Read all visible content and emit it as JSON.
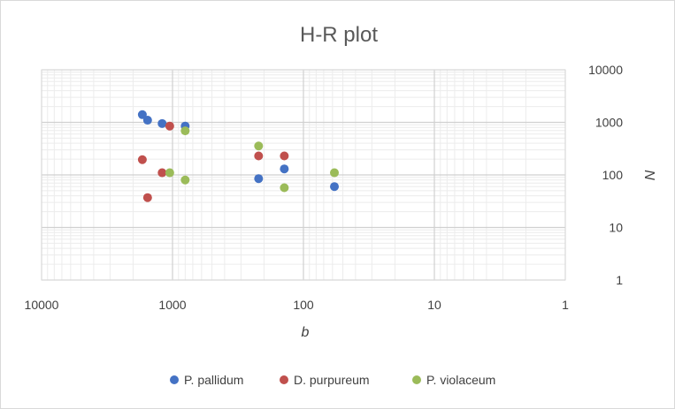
{
  "chart_data": {
    "type": "scatter",
    "title": "H-R plot",
    "xlabel": "b",
    "ylabel": "N",
    "x_scale": "log",
    "y_scale": "log",
    "x_reversed": true,
    "xlim": [
      10000,
      1
    ],
    "ylim": [
      1,
      10000
    ],
    "x_ticks": [
      10000,
      1000,
      100,
      10,
      1
    ],
    "x_tick_labels": [
      "10000",
      "1000",
      "100",
      "10",
      "1"
    ],
    "y_ticks": [
      1,
      10,
      100,
      1000,
      10000
    ],
    "y_tick_labels": [
      "1",
      "10",
      "100",
      "1000",
      "10000"
    ],
    "y_axis_side": "right",
    "grid": true,
    "minor_grid": true,
    "legend_position": "bottom",
    "series": [
      {
        "name": "P. pallidum",
        "color": "#4472c4",
        "points": [
          [
            1700,
            1400
          ],
          [
            1550,
            1100
          ],
          [
            1200,
            950
          ],
          [
            800,
            850
          ],
          [
            220,
            85
          ],
          [
            140,
            130
          ],
          [
            58,
            60
          ]
        ]
      },
      {
        "name": "D. purpureum",
        "color": "#c0504d",
        "points": [
          [
            1700,
            195
          ],
          [
            1550,
            37
          ],
          [
            1200,
            110
          ],
          [
            1050,
            850
          ],
          [
            220,
            230
          ],
          [
            140,
            230
          ]
        ]
      },
      {
        "name": "P. violaceum",
        "color": "#9bbb59",
        "points": [
          [
            1050,
            110
          ],
          [
            800,
            80
          ],
          [
            800,
            690
          ],
          [
            220,
            355
          ],
          [
            140,
            57
          ],
          [
            58,
            110
          ]
        ]
      }
    ]
  }
}
